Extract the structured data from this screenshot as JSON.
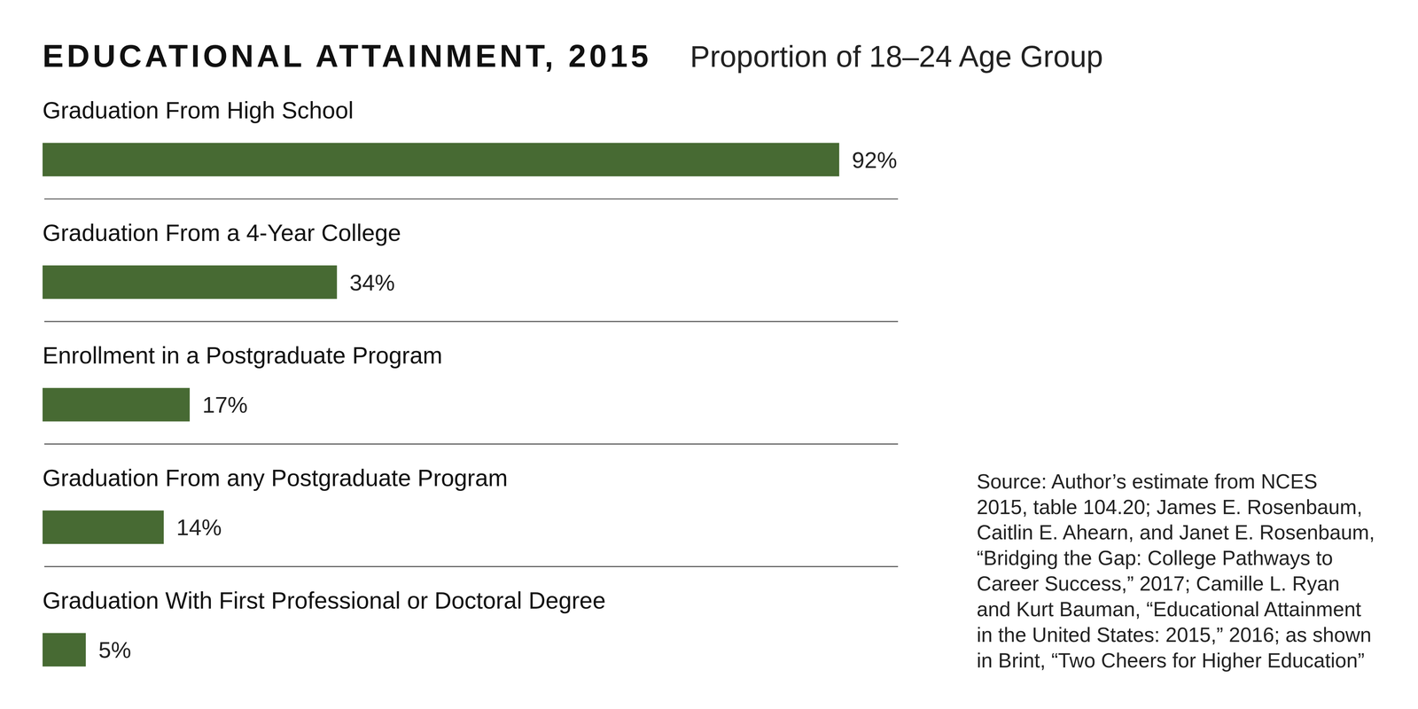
{
  "chart_data": {
    "type": "bar",
    "title": "EDUCATIONAL ATTAINMENT, 2015",
    "subtitle": "Proportion of 18–24 Age Group",
    "orientation": "horizontal",
    "categories": [
      "Graduation From High School",
      "Graduation From a 4-Year College",
      "Enrollment in a Postgraduate Program",
      "Graduation From any Postgraduate Program",
      "Graduation With First Professional or Doctoral Degree"
    ],
    "values": [
      92,
      34,
      17,
      14,
      5
    ],
    "value_labels": [
      "92%",
      "34%",
      "17%",
      "14%",
      "5%"
    ],
    "color": "#476a33",
    "xlim": [
      0,
      100
    ],
    "data_labels": true,
    "tick_labels": false,
    "grid": false,
    "source": [
      "Source: Author’s estimate from NCES",
      "2015, table 104.20; James E. Rosenbaum,",
      "Caitlin E. Ahearn, and Janet E. Rosenbaum,",
      "“Bridging the Gap: College Pathways to",
      "Career Success,” 2017; Camille L. Ryan",
      "and Kurt Bauman, “Educational Attainment",
      "in the United States: 2015,” 2016; as shown",
      "in Brint, “Two Cheers for Higher Education”"
    ]
  }
}
